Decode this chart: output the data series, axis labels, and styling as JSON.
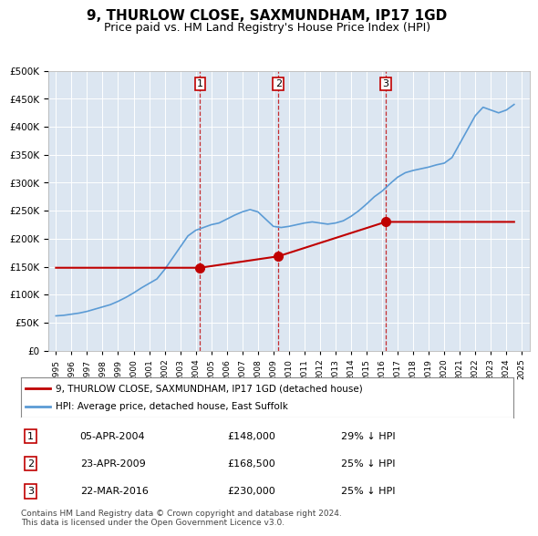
{
  "title": "9, THURLOW CLOSE, SAXMUNDHAM, IP17 1GD",
  "subtitle": "Price paid vs. HM Land Registry's House Price Index (HPI)",
  "bg_color": "#dce6f1",
  "plot_bg_color": "#dce6f1",
  "hpi_color": "#5b9bd5",
  "price_color": "#c00000",
  "marker_color": "#c00000",
  "dashed_line_color": "#c00000",
  "purchases": [
    {
      "date_num": 2004.27,
      "price": 148000,
      "label": "1"
    },
    {
      "date_num": 2009.32,
      "price": 168500,
      "label": "2"
    },
    {
      "date_num": 2016.23,
      "price": 230000,
      "label": "3"
    }
  ],
  "table_data": [
    {
      "num": "1",
      "date": "05-APR-2004",
      "price": "£148,000",
      "pct": "29% ↓ HPI"
    },
    {
      "num": "2",
      "date": "23-APR-2009",
      "price": "£168,500",
      "pct": "25% ↓ HPI"
    },
    {
      "num": "3",
      "date": "22-MAR-2016",
      "price": "£230,000",
      "pct": "25% ↓ HPI"
    }
  ],
  "legend_entries": [
    "9, THURLOW CLOSE, SAXMUNDHAM, IP17 1GD (detached house)",
    "HPI: Average price, detached house, East Suffolk"
  ],
  "footer": "Contains HM Land Registry data © Crown copyright and database right 2024.\nThis data is licensed under the Open Government Licence v3.0.",
  "ylim": [
    0,
    500000
  ],
  "yticks": [
    0,
    50000,
    100000,
    150000,
    200000,
    250000,
    300000,
    350000,
    400000,
    450000,
    500000
  ],
  "xlim": [
    1994.5,
    2025.5
  ]
}
